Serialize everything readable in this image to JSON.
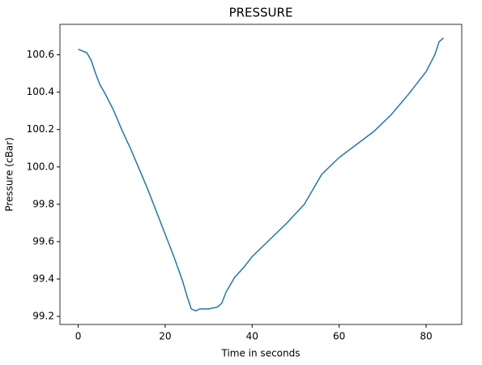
{
  "chart_data": {
    "type": "line",
    "title": "PRESSURE",
    "xlabel": "Time in seconds",
    "ylabel": "Pressure (cBar)",
    "x": [
      0,
      1,
      2,
      3,
      4,
      5,
      6,
      8,
      10,
      12,
      14,
      16,
      18,
      20,
      22,
      24,
      25,
      26,
      27,
      28,
      30,
      32,
      33,
      34,
      36,
      38,
      40,
      44,
      48,
      52,
      56,
      60,
      64,
      68,
      72,
      76,
      80,
      82,
      83,
      84
    ],
    "series": [
      {
        "name": "Pressure",
        "color": "#1f77b4",
        "values": [
          100.63,
          100.62,
          100.61,
          100.57,
          100.5,
          100.44,
          100.4,
          100.31,
          100.2,
          100.1,
          99.99,
          99.88,
          99.76,
          99.64,
          99.52,
          99.39,
          99.31,
          99.24,
          99.23,
          99.24,
          99.24,
          99.25,
          99.27,
          99.33,
          99.41,
          99.46,
          99.52,
          99.61,
          99.7,
          99.8,
          99.96,
          100.05,
          100.12,
          100.19,
          100.28,
          100.39,
          100.51,
          100.6,
          100.67,
          100.69
        ]
      }
    ],
    "xlim": [
      -4.2,
      88.2
    ],
    "xticks": [
      0,
      20,
      40,
      60,
      80
    ],
    "ylim": [
      99.157,
      100.763
    ],
    "yticks": [
      99.2,
      99.4,
      99.6,
      99.8,
      {
        "value": 100,
        "label": "100.0"
      },
      100.2,
      100.4,
      100.6
    ]
  }
}
